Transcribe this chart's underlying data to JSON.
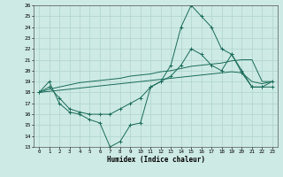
{
  "xlabel": "Humidex (Indice chaleur)",
  "ylim": [
    13,
    26
  ],
  "xlim": [
    -0.5,
    23.5
  ],
  "yticks": [
    13,
    14,
    15,
    16,
    17,
    18,
    19,
    20,
    21,
    22,
    23,
    24,
    25,
    26
  ],
  "xticks": [
    0,
    1,
    2,
    3,
    4,
    5,
    6,
    7,
    8,
    9,
    10,
    11,
    12,
    13,
    14,
    15,
    16,
    17,
    18,
    19,
    20,
    21,
    22,
    23
  ],
  "bg_color": "#cdeae4",
  "grid_color": "#b0d4cc",
  "line_color": "#1a6b5a",
  "lines": [
    {
      "x": [
        0,
        1,
        2,
        3,
        4,
        5,
        6,
        7,
        8,
        9,
        10,
        11,
        12,
        13,
        14,
        15,
        16,
        17,
        18,
        19,
        20,
        21,
        22,
        23
      ],
      "y": [
        18,
        19,
        17,
        16.2,
        16,
        15.5,
        15.2,
        13,
        13.5,
        15,
        15.2,
        18.5,
        19,
        20.5,
        24,
        26,
        25,
        24,
        22,
        21.5,
        20,
        18.5,
        18.5,
        19
      ],
      "marker": "+"
    },
    {
      "x": [
        0,
        1,
        2,
        3,
        4,
        5,
        6,
        7,
        8,
        9,
        10,
        11,
        12,
        13,
        14,
        15,
        16,
        17,
        18,
        19,
        20,
        21,
        22,
        23
      ],
      "y": [
        18,
        18.3,
        18.5,
        18.7,
        18.9,
        19.0,
        19.1,
        19.2,
        19.3,
        19.5,
        19.6,
        19.7,
        19.9,
        20.0,
        20.2,
        20.4,
        20.5,
        20.6,
        20.7,
        20.9,
        21.0,
        21.0,
        19.0,
        19.0
      ],
      "marker": null
    },
    {
      "x": [
        0,
        1,
        2,
        3,
        4,
        5,
        6,
        7,
        8,
        9,
        10,
        11,
        12,
        13,
        14,
        15,
        16,
        17,
        18,
        19,
        20,
        21,
        22,
        23
      ],
      "y": [
        18,
        18.1,
        18.2,
        18.3,
        18.4,
        18.5,
        18.6,
        18.7,
        18.8,
        18.9,
        19.0,
        19.1,
        19.2,
        19.3,
        19.4,
        19.5,
        19.6,
        19.7,
        19.8,
        19.9,
        19.8,
        19.0,
        18.8,
        19.0
      ],
      "marker": null
    },
    {
      "x": [
        0,
        1,
        2,
        3,
        4,
        5,
        6,
        7,
        8,
        9,
        10,
        11,
        12,
        13,
        14,
        15,
        16,
        17,
        18,
        19,
        20,
        21,
        22,
        23
      ],
      "y": [
        18,
        18.5,
        17.5,
        16.5,
        16.2,
        16,
        16,
        16,
        16.5,
        17,
        17.5,
        18.5,
        19,
        19.5,
        20.5,
        22,
        21.5,
        20.5,
        20,
        21.5,
        19.8,
        18.5,
        18.5,
        18.5
      ],
      "marker": "+"
    }
  ]
}
